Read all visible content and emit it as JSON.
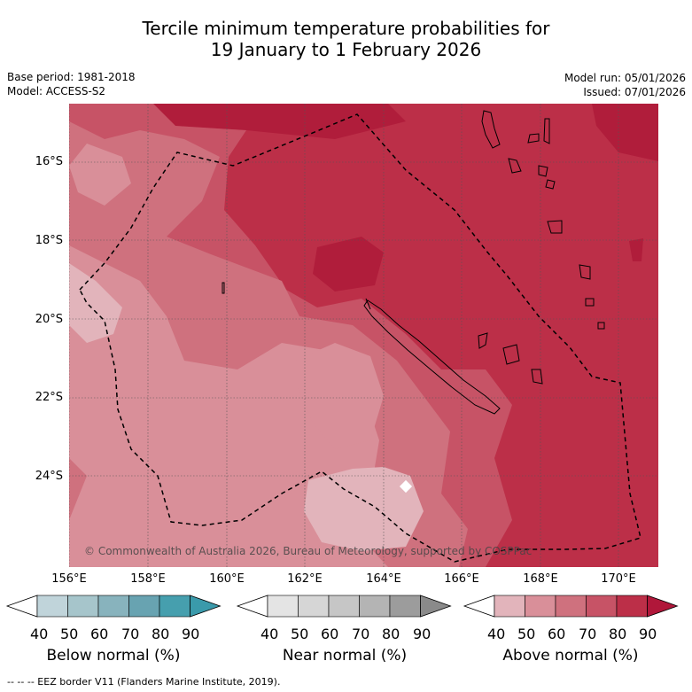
{
  "title": {
    "line1": "Tercile minimum temperature probabilities for",
    "line2": "19 January to 1 February 2026"
  },
  "meta": {
    "base_period": "Base period: 1981-2018",
    "model": "Model: ACCESS-S2",
    "model_run": "Model run: 05/01/2026",
    "issued": "Issued: 07/01/2026"
  },
  "map": {
    "latitudes": [
      "16°S",
      "18°S",
      "20°S",
      "22°S",
      "24°S"
    ],
    "longitudes": [
      "156°E",
      "158°E",
      "160°E",
      "162°E",
      "164°E",
      "166°E",
      "168°E",
      "170°E"
    ],
    "copyright": "© Commonwealth of Australia 2026, Bureau of Meteorology, supported by COSPPac"
  },
  "colorbars": [
    {
      "label": "Below normal (%)",
      "ticks": [
        "40",
        "50",
        "60",
        "70",
        "80",
        "90"
      ],
      "colors": [
        "#c0d4da",
        "#a6c5cb",
        "#88b3bd",
        "#68a3b1",
        "#469fae"
      ],
      "low": "#ffffff",
      "high": "#3a9aab"
    },
    {
      "label": "Near normal (%)",
      "ticks": [
        "40",
        "50",
        "60",
        "70",
        "80",
        "90"
      ],
      "colors": [
        "#e4e4e4",
        "#d6d6d6",
        "#c6c6c6",
        "#b4b4b4",
        "#9c9c9c"
      ],
      "low": "#ffffff",
      "high": "#8a8a8a"
    },
    {
      "label": "Above normal (%)",
      "ticks": [
        "40",
        "50",
        "60",
        "70",
        "80",
        "90"
      ],
      "colors": [
        "#e2b4bb",
        "#d98f99",
        "#cf717e",
        "#c75366",
        "#bc2f48"
      ],
      "low": "#ffffff",
      "high": "#b0173a"
    }
  ],
  "footnote": "--  --  -- EEZ border V11 (Flanders Marine Institute, 2019)."
}
